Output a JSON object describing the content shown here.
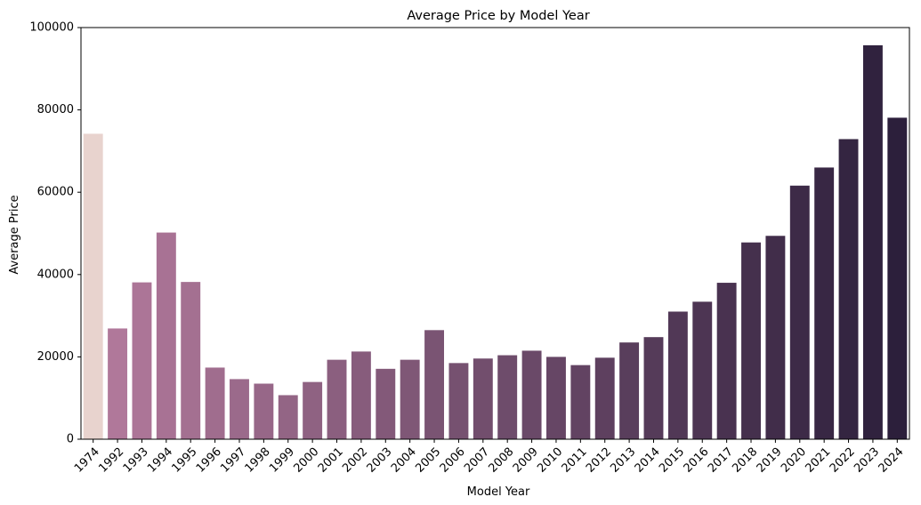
{
  "chart_data": {
    "type": "bar",
    "title": "Average Price by Model Year",
    "xlabel": "Model Year",
    "ylabel": "Average Price",
    "ylim": [
      0,
      100000
    ],
    "yticks": [
      0,
      20000,
      40000,
      60000,
      80000,
      100000
    ],
    "ytick_labels": [
      "0",
      "20000",
      "40000",
      "60000",
      "80000",
      "100000"
    ],
    "grid": false,
    "legend": "none",
    "palette": {
      "light": "#E8D3CE",
      "mid": "#B0789A",
      "dark": "#2C1F3B"
    },
    "categories": [
      "1974",
      "1992",
      "1993",
      "1994",
      "1995",
      "1996",
      "1997",
      "1998",
      "1999",
      "2000",
      "2001",
      "2002",
      "2003",
      "2004",
      "2005",
      "2006",
      "2007",
      "2008",
      "2009",
      "2010",
      "2011",
      "2012",
      "2013",
      "2014",
      "2015",
      "2016",
      "2017",
      "2018",
      "2019",
      "2020",
      "2021",
      "2022",
      "2023",
      "2024"
    ],
    "values": [
      74200,
      26900,
      38100,
      50200,
      38200,
      17400,
      14600,
      13500,
      10700,
      13900,
      19300,
      21300,
      17100,
      19300,
      26500,
      18500,
      19600,
      20400,
      21500,
      20000,
      18000,
      19800,
      23500,
      24800,
      31000,
      33400,
      38000,
      47800,
      49400,
      61600,
      66000,
      72900,
      95700,
      78100
    ]
  }
}
